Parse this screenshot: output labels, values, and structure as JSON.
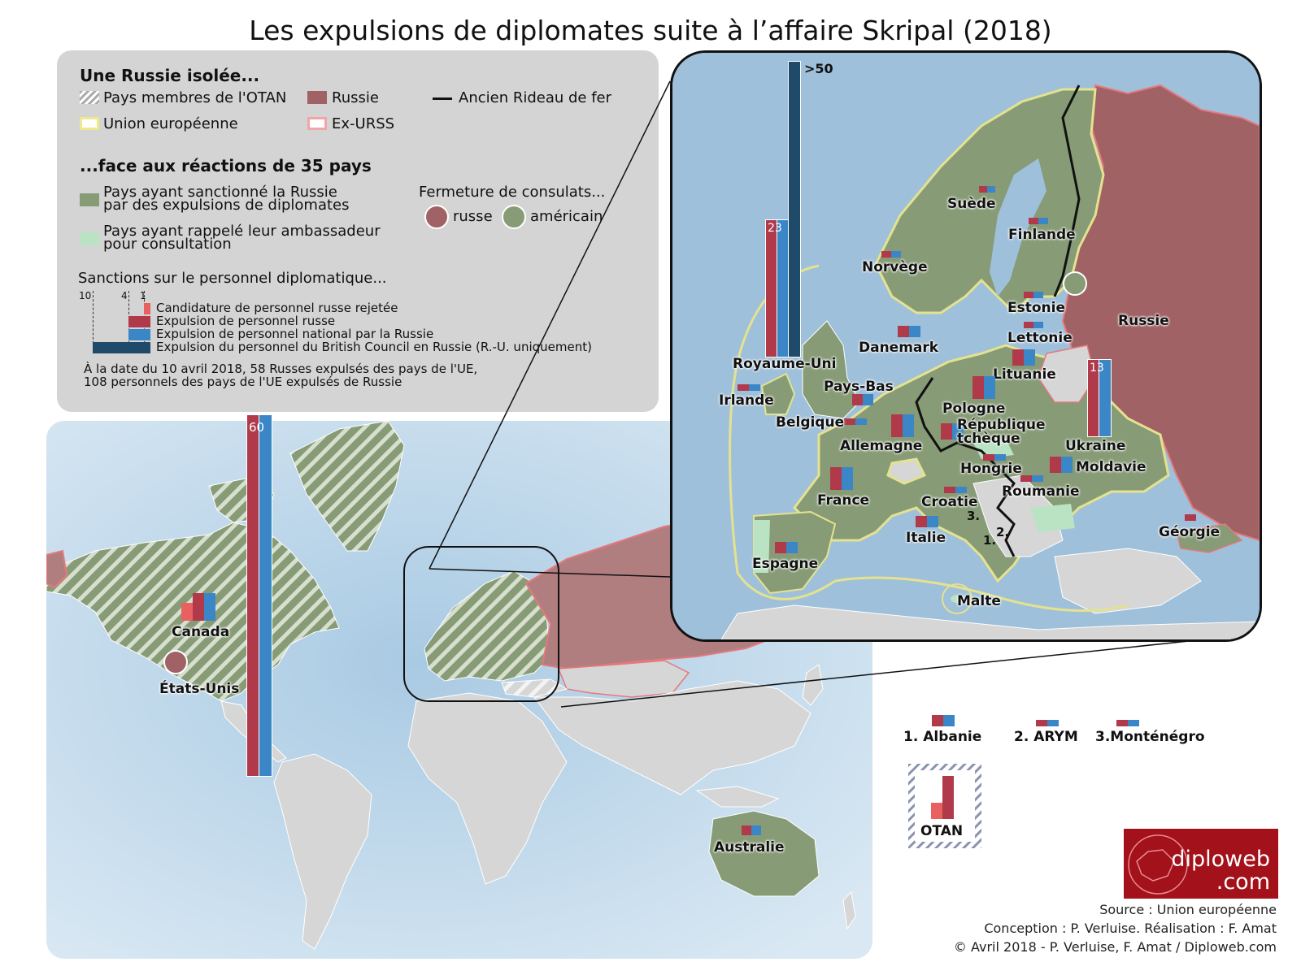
{
  "title": "Les expulsions de diplomates suite à l’affaire Skripal (2018)",
  "legend": {
    "heading1": "Une Russie isolée...",
    "nato": "Pays membres de l'OTAN",
    "eu": "Union européenne",
    "russia": "Russie",
    "ex_ussr": "Ex-URSS",
    "iron_curtain": "Ancien Rideau de fer",
    "heading2": "...face aux réactions de 35 pays",
    "sanctioned_1": "Pays ayant sanctionné la Russie",
    "sanctioned_2": "par des expulsions de diplomates",
    "recalled_1": "Pays ayant rappelé leur ambassadeur",
    "recalled_2": "pour consultation",
    "consulates": "Fermeture de consulats...",
    "consulate_russian": "russe",
    "consulate_american": "américain",
    "sanctions_heading": "Sanctions sur le personnel diplomatique...",
    "scale_ticks": [
      "10",
      "4",
      "1"
    ],
    "bar_rejected": "Candidature de personnel russe rejetée",
    "bar_russian": "Expulsion de personnel russe",
    "bar_national": "Expulsion de personnel national par la Russie",
    "bar_british": "Expulsion du personnel du British Council en Russie (R.-U. uniquement)",
    "note_1": "À la date du 10 avril 2018, 58 Russes expulsés des pays de l'UE,",
    "note_2": "108 personnels des pays de l'UE expulsés de Russie"
  },
  "colors": {
    "sanctioned": "#879c76",
    "recalled": "#b9e3c2",
    "russia": "#a06264",
    "ex_ussr_border": "#e5787d",
    "eu_border": "#e4e28f",
    "sea": "#9fc0da",
    "other_land": "#d6d6d6",
    "bar_rejected": "#e96060",
    "bar_russian": "#b0394a",
    "bar_national": "#3a86c6",
    "bar_british": "#204a6a"
  },
  "world_labels": {
    "canada": "Canada",
    "usa": "États-Unis",
    "australia": "Australie",
    "usa_bar_value": "60"
  },
  "inset_labels": {
    "uk": "Royaume-Uni",
    "uk_russian_value": "23",
    "uk_british_value": ">50",
    "ireland": "Irlande",
    "norway": "Norvège",
    "sweden": "Suède",
    "finland": "Finlande",
    "estonia": "Estonie",
    "latvia": "Lettonie",
    "lithuania": "Lituanie",
    "russia": "Russie",
    "denmark": "Danemark",
    "netherlands": "Pays-Bas",
    "belgium": "Belgique",
    "germany": "Allemagne",
    "poland": "Pologne",
    "czech_1": "République",
    "czech_2": "tchèque",
    "ukraine": "Ukraine",
    "ukraine_value": "13",
    "hungary": "Hongrie",
    "moldova": "Moldavie",
    "romania": "Roumanie",
    "croatia": "Croatie",
    "france": "France",
    "italy": "Italie",
    "spain": "Espagne",
    "georgia": "Géorgie",
    "malta": "Malte",
    "num1": "1.",
    "num2": "2.",
    "num3": "3."
  },
  "aside": {
    "albania": "1. Albanie",
    "arym": "2. ARYM",
    "montenegro": "3.Monténégro",
    "nato": "OTAN"
  },
  "logo": {
    "line1": "diploweb",
    "line2": ".com"
  },
  "credits": {
    "source": "Source : Union européenne",
    "conception": "Conception : P. Verluise. Réalisation : F. Amat",
    "copyright": "© Avril 2018 - P. Verluise, F. Amat / Diploweb.com"
  }
}
